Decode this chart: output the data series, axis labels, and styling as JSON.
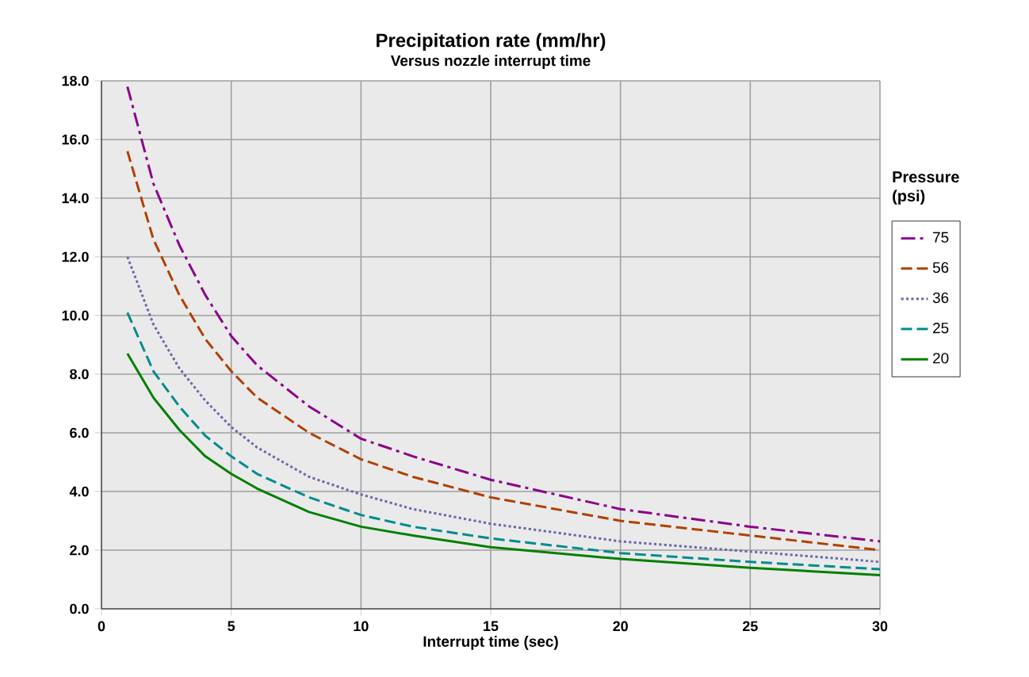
{
  "chart_data": {
    "type": "line",
    "title": "Precipitation rate (mm/hr)",
    "subtitle": "Versus nozzle interrupt time",
    "xlabel": "Interrupt time (sec)",
    "legend_title": "Pressure (psi)",
    "xlim": [
      0,
      30
    ],
    "ylim": [
      0,
      18
    ],
    "xticks": [
      0,
      5,
      10,
      15,
      20,
      25,
      30
    ],
    "yticks": [
      {
        "value": 0,
        "label": "0.0"
      },
      {
        "value": 2,
        "label": "2.0"
      },
      {
        "value": 4,
        "label": "4.0"
      },
      {
        "value": 6,
        "label": "6.0"
      },
      {
        "value": 8,
        "label": "8.0"
      },
      {
        "value": 10,
        "label": "10.0"
      },
      {
        "value": 12,
        "label": "12.0"
      },
      {
        "value": 14,
        "label": "14.0"
      },
      {
        "value": 16,
        "label": "16.0"
      },
      {
        "value": 18,
        "label": "18.0"
      }
    ],
    "grid": true,
    "legend": "right",
    "x": [
      1,
      2,
      3,
      4,
      5,
      6,
      8,
      10,
      12,
      15,
      20,
      25,
      30
    ],
    "series": [
      {
        "name": "75",
        "color": "#8b008b",
        "line_style": "dashdot",
        "values": [
          17.8,
          14.5,
          12.4,
          10.7,
          9.3,
          8.3,
          6.9,
          5.8,
          5.2,
          4.4,
          3.4,
          2.8,
          2.3
        ]
      },
      {
        "name": "56",
        "color": "#b04000",
        "line_style": "dashed",
        "values": [
          15.6,
          12.6,
          10.7,
          9.2,
          8.1,
          7.2,
          6.0,
          5.1,
          4.5,
          3.8,
          3.0,
          2.5,
          2.0
        ]
      },
      {
        "name": "36",
        "color": "#6a6aa8",
        "line_style": "dotted",
        "values": [
          12.0,
          9.7,
          8.2,
          7.1,
          6.2,
          5.5,
          4.5,
          3.9,
          3.4,
          2.9,
          2.3,
          1.95,
          1.6
        ]
      },
      {
        "name": "25",
        "color": "#008b8b",
        "line_style": "dashed",
        "values": [
          10.1,
          8.1,
          6.9,
          5.9,
          5.2,
          4.6,
          3.8,
          3.2,
          2.8,
          2.4,
          1.9,
          1.6,
          1.35
        ]
      },
      {
        "name": "20",
        "color": "#008000",
        "line_style": "solid",
        "values": [
          8.7,
          7.2,
          6.1,
          5.2,
          4.6,
          4.1,
          3.3,
          2.8,
          2.5,
          2.1,
          1.7,
          1.4,
          1.15
        ]
      }
    ]
  }
}
